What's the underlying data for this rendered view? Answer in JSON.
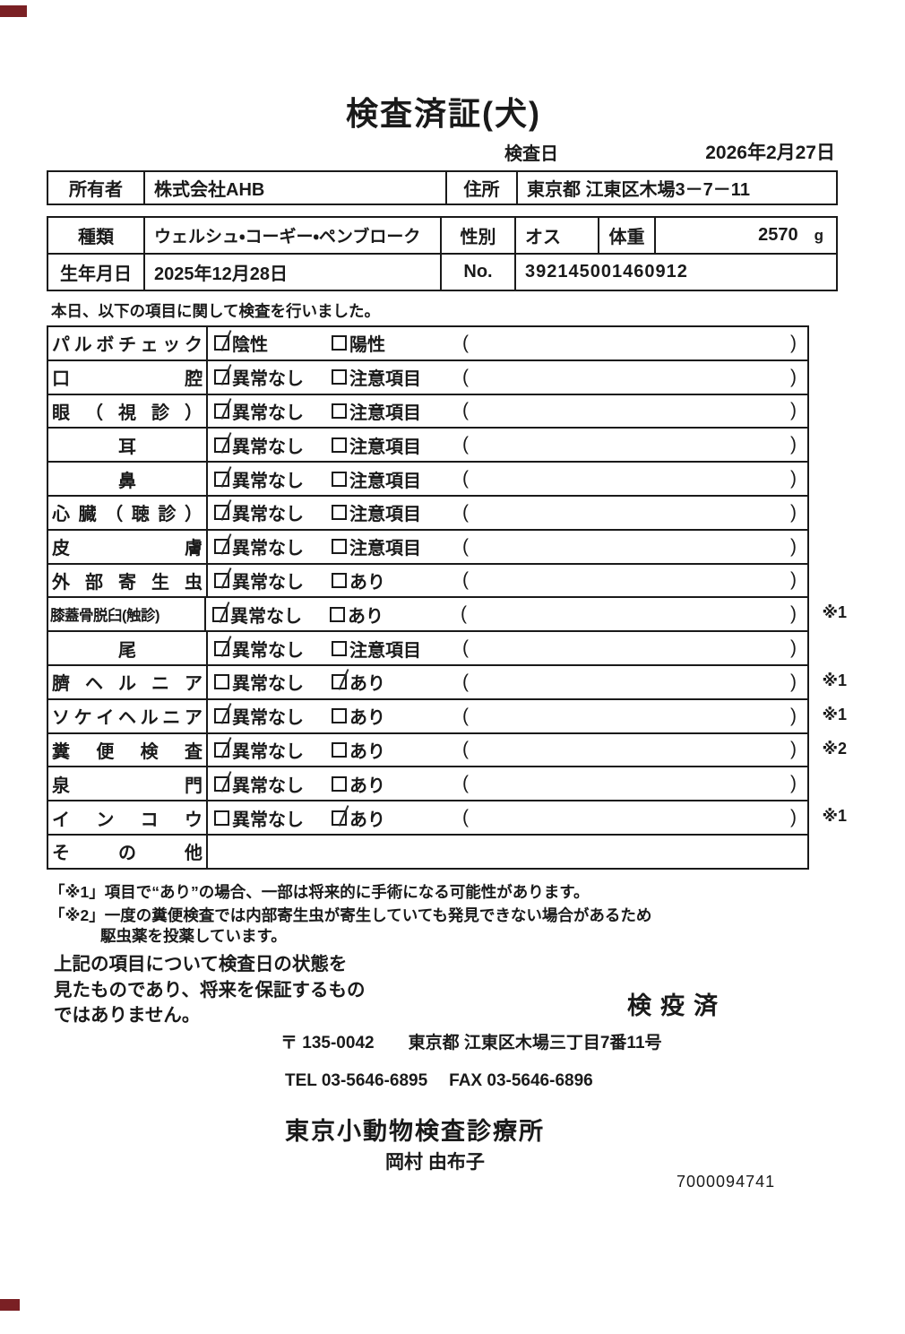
{
  "colors": {
    "ink": "#1a1a1a",
    "artifact_red": "#7a2024"
  },
  "header": {
    "title": "検査済証(犬)",
    "inspection_date_label": "検査日",
    "inspection_date": "2026年2月27日"
  },
  "owner_table": {
    "owner_label": "所有者",
    "owner_value": "株式会社AHB",
    "address_label": "住所",
    "address_value": "東京都 江東区木場3－7－11"
  },
  "pet_table": {
    "breed_label": "種類",
    "breed_value": "ウェルシュ・コーギー・ペンブローク",
    "sex_label": "性別",
    "sex_value": "オス",
    "weight_label": "体重",
    "weight_value": "2570",
    "weight_unit": "g",
    "birth_label": "生年月日",
    "birth_value": "2025年12月28日",
    "no_label": "No.",
    "no_value": "392145001460912"
  },
  "intro": "本日、以下の項目に関して検査を行いました。",
  "checklist": {
    "paren_open": "(",
    "paren_close": ")",
    "rows": [
      {
        "label": "パルボチェック",
        "options": [
          {
            "label": "陰性",
            "checked": true
          },
          {
            "label": "陽性",
            "checked": false
          }
        ],
        "note": ""
      },
      {
        "label": "口腔",
        "options": [
          {
            "label": "異常なし",
            "checked": true
          },
          {
            "label": "注意項目",
            "checked": false
          }
        ],
        "note": ""
      },
      {
        "label": "眼（視診）",
        "options": [
          {
            "label": "異常なし",
            "checked": true
          },
          {
            "label": "注意項目",
            "checked": false
          }
        ],
        "note": ""
      },
      {
        "label": "耳",
        "options": [
          {
            "label": "異常なし",
            "checked": true
          },
          {
            "label": "注意項目",
            "checked": false
          }
        ],
        "note": ""
      },
      {
        "label": "鼻",
        "options": [
          {
            "label": "異常なし",
            "checked": true
          },
          {
            "label": "注意項目",
            "checked": false
          }
        ],
        "note": ""
      },
      {
        "label": "心臓（聴診）",
        "options": [
          {
            "label": "異常なし",
            "checked": true
          },
          {
            "label": "注意項目",
            "checked": false
          }
        ],
        "note": ""
      },
      {
        "label": "皮膚",
        "options": [
          {
            "label": "異常なし",
            "checked": true
          },
          {
            "label": "注意項目",
            "checked": false
          }
        ],
        "note": ""
      },
      {
        "label": "外部寄生虫",
        "options": [
          {
            "label": "異常なし",
            "checked": true
          },
          {
            "label": "あり",
            "checked": false
          }
        ],
        "note": ""
      },
      {
        "label": "膝蓋骨脱臼(触診)",
        "compact": true,
        "options": [
          {
            "label": "異常なし",
            "checked": true
          },
          {
            "label": "あり",
            "checked": false
          }
        ],
        "note": "※1"
      },
      {
        "label": "尾",
        "options": [
          {
            "label": "異常なし",
            "checked": true
          },
          {
            "label": "注意項目",
            "checked": false
          }
        ],
        "note": ""
      },
      {
        "label": "臍ヘルニア",
        "options": [
          {
            "label": "異常なし",
            "checked": false
          },
          {
            "label": "あり",
            "checked": true
          }
        ],
        "note": "※1"
      },
      {
        "label": "ソケイヘルニア",
        "options": [
          {
            "label": "異常なし",
            "checked": true
          },
          {
            "label": "あり",
            "checked": false
          }
        ],
        "note": "※1"
      },
      {
        "label": "糞便検査",
        "options": [
          {
            "label": "異常なし",
            "checked": true
          },
          {
            "label": "あり",
            "checked": false
          }
        ],
        "note": "※2"
      },
      {
        "label": "泉門",
        "options": [
          {
            "label": "異常なし",
            "checked": true
          },
          {
            "label": "あり",
            "checked": false
          }
        ],
        "note": ""
      },
      {
        "label": "インコウ",
        "options": [
          {
            "label": "異常なし",
            "checked": false
          },
          {
            "label": "あり",
            "checked": true
          }
        ],
        "note": "※1"
      },
      {
        "label": "その他",
        "options": null,
        "note": ""
      }
    ]
  },
  "footnotes": [
    "「※1」項目で“あり”の場合、一部は将来的に手術になる可能性があります。",
    "「※2」一度の糞便検査では内部寄生虫が寄生していても発見できない場合があるため",
    "駆虫薬を投薬しています。"
  ],
  "disclaimer": [
    "上記の項目について検査日の状態を",
    "見たものであり、将来を保証するもの",
    "ではありません。"
  ],
  "stamp": "検疫済",
  "clinic": {
    "postal": "〒 135-0042",
    "address": "東京都 江東区木場三丁目7番11号",
    "tel": "TEL 03-5646-6895",
    "fax": "FAX 03-5646-6896",
    "name": "東京小動物検査診療所",
    "person": "岡村 由布子"
  },
  "serial": "7000094741"
}
